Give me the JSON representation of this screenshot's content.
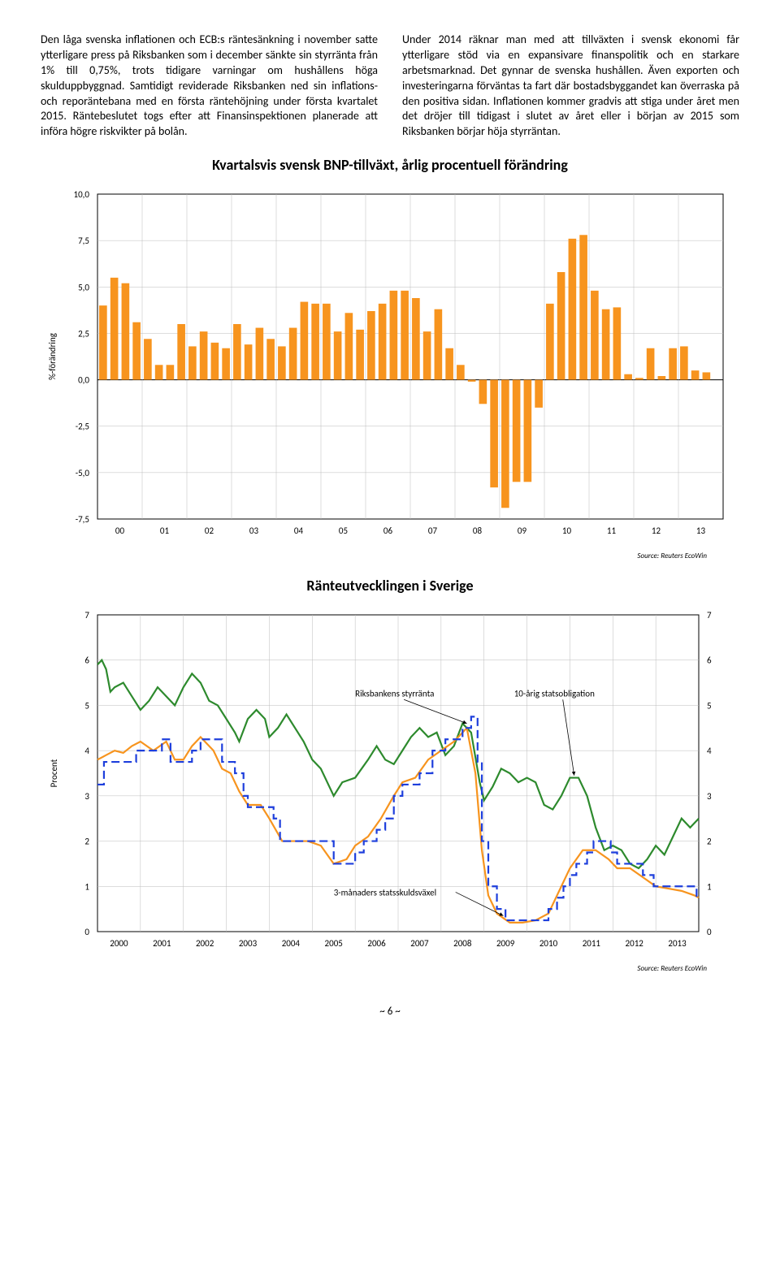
{
  "paragraphs": {
    "left": "Den låga svenska inflationen och ECB:s räntesänkning i november satte ytterligare press på Riksbanken som i december sänkte sin styrränta från 1% till 0,75%, trots tidigare varningar om hushållens höga skulduppbyggnad. Samtidigt reviderade Riksbanken ned sin inflations- och reporäntebana med en första räntehöjning under första kvartalet 2015. Räntebeslutet togs efter att Finansinspektionen planerade att införa högre riskvikter på bolån.",
    "right": "Under 2014 räknar man med att tillväxten i svensk ekonomi får ytterligare stöd via en expansivare finanspolitik och en starkare arbetsmarknad. Det gynnar de svenska hushållen. Även exporten och investeringarna förväntas ta fart där bostadsbyggandet kan överraska på den positiva sidan. Inflationen kommer gradvis att stiga under året men det dröjer till tidigast i slutet av året eller i början av 2015 som Riksbanken börjar höja styrräntan."
  },
  "bar_chart": {
    "title": "Kvartalsvis svensk BNP-tillväxt, årlig procentuell förändring",
    "y_label": "%-förändring",
    "y_min": -7.5,
    "y_max": 10.0,
    "y_step": 2.5,
    "x_labels": [
      "00",
      "01",
      "02",
      "03",
      "04",
      "05",
      "06",
      "07",
      "08",
      "09",
      "10",
      "11",
      "12",
      "13"
    ],
    "values": [
      4.0,
      5.5,
      5.2,
      3.1,
      2.2,
      0.8,
      0.8,
      3.0,
      1.8,
      2.6,
      2.0,
      1.7,
      3.0,
      1.9,
      2.8,
      2.2,
      1.8,
      2.8,
      4.2,
      4.1,
      4.1,
      2.6,
      3.6,
      2.7,
      3.7,
      4.1,
      4.8,
      4.8,
      4.4,
      2.6,
      3.8,
      1.7,
      0.8,
      -0.1,
      -1.3,
      -5.8,
      -6.9,
      -5.5,
      -5.5,
      -1.5,
      4.1,
      5.8,
      7.6,
      7.8,
      4.8,
      3.8,
      3.9,
      0.3,
      0.1,
      1.7,
      0.2,
      1.7,
      1.8,
      0.5,
      0.4,
      0.0
    ],
    "bar_color": "#f7941e",
    "background_color": "#ffffff"
  },
  "line_chart": {
    "title": "Ränteutvecklingen i Sverige",
    "y_label": "Procent",
    "y_min": 0,
    "y_max": 7,
    "y_step": 1,
    "x_min": 2000,
    "x_max": 2014,
    "x_labels": [
      "2000",
      "2001",
      "2002",
      "2003",
      "2004",
      "2005",
      "2006",
      "2007",
      "2008",
      "2009",
      "2010",
      "2011",
      "2012",
      "2013"
    ],
    "anno1": "Riksbankens styrränta",
    "anno2": "10-årig statsobligation",
    "anno3": "3-månaders statsskuldsväxel",
    "colors": {
      "green": "#2d8a2d",
      "blue": "#1e3fdc",
      "orange": "#f7941e"
    },
    "series_green": [
      [
        2000.0,
        5.9
      ],
      [
        2000.1,
        6.0
      ],
      [
        2000.2,
        5.8
      ],
      [
        2000.3,
        5.3
      ],
      [
        2000.4,
        5.4
      ],
      [
        2000.6,
        5.5
      ],
      [
        2000.8,
        5.2
      ],
      [
        2001.0,
        4.9
      ],
      [
        2001.2,
        5.1
      ],
      [
        2001.4,
        5.4
      ],
      [
        2001.6,
        5.2
      ],
      [
        2001.8,
        5.0
      ],
      [
        2002.0,
        5.4
      ],
      [
        2002.2,
        5.7
      ],
      [
        2002.4,
        5.5
      ],
      [
        2002.6,
        5.1
      ],
      [
        2002.8,
        5.0
      ],
      [
        2003.0,
        4.7
      ],
      [
        2003.2,
        4.4
      ],
      [
        2003.3,
        4.2
      ],
      [
        2003.5,
        4.7
      ],
      [
        2003.7,
        4.9
      ],
      [
        2003.9,
        4.7
      ],
      [
        2004.0,
        4.3
      ],
      [
        2004.2,
        4.5
      ],
      [
        2004.4,
        4.8
      ],
      [
        2004.6,
        4.5
      ],
      [
        2004.8,
        4.2
      ],
      [
        2005.0,
        3.8
      ],
      [
        2005.2,
        3.6
      ],
      [
        2005.4,
        3.2
      ],
      [
        2005.5,
        3.0
      ],
      [
        2005.7,
        3.3
      ],
      [
        2006.0,
        3.4
      ],
      [
        2006.3,
        3.8
      ],
      [
        2006.5,
        4.1
      ],
      [
        2006.7,
        3.8
      ],
      [
        2006.9,
        3.7
      ],
      [
        2007.1,
        4.0
      ],
      [
        2007.3,
        4.3
      ],
      [
        2007.5,
        4.5
      ],
      [
        2007.7,
        4.3
      ],
      [
        2007.9,
        4.4
      ],
      [
        2008.1,
        3.9
      ],
      [
        2008.3,
        4.1
      ],
      [
        2008.5,
        4.6
      ],
      [
        2008.7,
        4.4
      ],
      [
        2008.9,
        3.3
      ],
      [
        2009.0,
        2.9
      ],
      [
        2009.2,
        3.2
      ],
      [
        2009.4,
        3.6
      ],
      [
        2009.6,
        3.5
      ],
      [
        2009.8,
        3.3
      ],
      [
        2010.0,
        3.4
      ],
      [
        2010.2,
        3.3
      ],
      [
        2010.4,
        2.8
      ],
      [
        2010.6,
        2.7
      ],
      [
        2010.8,
        3.0
      ],
      [
        2011.0,
        3.4
      ],
      [
        2011.2,
        3.4
      ],
      [
        2011.4,
        3.0
      ],
      [
        2011.6,
        2.3
      ],
      [
        2011.8,
        1.8
      ],
      [
        2012.0,
        1.9
      ],
      [
        2012.2,
        1.8
      ],
      [
        2012.4,
        1.5
      ],
      [
        2012.6,
        1.4
      ],
      [
        2012.8,
        1.6
      ],
      [
        2013.0,
        1.9
      ],
      [
        2013.2,
        1.7
      ],
      [
        2013.4,
        2.1
      ],
      [
        2013.6,
        2.5
      ],
      [
        2013.8,
        2.3
      ],
      [
        2014.0,
        2.5
      ]
    ],
    "series_blue": [
      [
        2000.0,
        3.25
      ],
      [
        2000.15,
        3.75
      ],
      [
        2000.9,
        4.0
      ],
      [
        2001.5,
        4.25
      ],
      [
        2001.7,
        3.75
      ],
      [
        2002.2,
        4.0
      ],
      [
        2002.4,
        4.25
      ],
      [
        2002.9,
        3.75
      ],
      [
        2003.2,
        3.5
      ],
      [
        2003.4,
        3.0
      ],
      [
        2003.5,
        2.75
      ],
      [
        2004.1,
        2.5
      ],
      [
        2004.25,
        2.0
      ],
      [
        2005.5,
        1.5
      ],
      [
        2006.0,
        1.75
      ],
      [
        2006.2,
        2.0
      ],
      [
        2006.5,
        2.25
      ],
      [
        2006.7,
        2.5
      ],
      [
        2006.9,
        3.0
      ],
      [
        2007.1,
        3.25
      ],
      [
        2007.5,
        3.5
      ],
      [
        2007.8,
        4.0
      ],
      [
        2008.1,
        4.25
      ],
      [
        2008.5,
        4.5
      ],
      [
        2008.7,
        4.75
      ],
      [
        2008.85,
        3.75
      ],
      [
        2008.95,
        2.0
      ],
      [
        2009.1,
        1.0
      ],
      [
        2009.3,
        0.5
      ],
      [
        2009.5,
        0.25
      ],
      [
        2010.5,
        0.5
      ],
      [
        2010.7,
        0.75
      ],
      [
        2010.85,
        1.0
      ],
      [
        2011.0,
        1.25
      ],
      [
        2011.15,
        1.5
      ],
      [
        2011.4,
        1.75
      ],
      [
        2011.55,
        2.0
      ],
      [
        2011.95,
        1.75
      ],
      [
        2012.1,
        1.5
      ],
      [
        2012.7,
        1.25
      ],
      [
        2012.95,
        1.0
      ],
      [
        2013.95,
        0.75
      ],
      [
        2014.0,
        0.75
      ]
    ],
    "series_orange": [
      [
        2000.0,
        3.8
      ],
      [
        2000.2,
        3.9
      ],
      [
        2000.4,
        4.0
      ],
      [
        2000.6,
        3.95
      ],
      [
        2000.8,
        4.1
      ],
      [
        2001.0,
        4.2
      ],
      [
        2001.3,
        4.0
      ],
      [
        2001.6,
        4.2
      ],
      [
        2001.8,
        3.8
      ],
      [
        2002.0,
        3.8
      ],
      [
        2002.2,
        4.1
      ],
      [
        2002.4,
        4.3
      ],
      [
        2002.7,
        4.0
      ],
      [
        2002.9,
        3.6
      ],
      [
        2003.1,
        3.5
      ],
      [
        2003.3,
        3.1
      ],
      [
        2003.5,
        2.8
      ],
      [
        2003.8,
        2.8
      ],
      [
        2004.0,
        2.5
      ],
      [
        2004.3,
        2.0
      ],
      [
        2004.6,
        2.0
      ],
      [
        2004.9,
        2.0
      ],
      [
        2005.2,
        1.9
      ],
      [
        2005.5,
        1.5
      ],
      [
        2005.8,
        1.6
      ],
      [
        2006.0,
        1.9
      ],
      [
        2006.3,
        2.1
      ],
      [
        2006.6,
        2.5
      ],
      [
        2006.9,
        3.0
      ],
      [
        2007.1,
        3.3
      ],
      [
        2007.4,
        3.4
      ],
      [
        2007.7,
        3.8
      ],
      [
        2008.0,
        4.0
      ],
      [
        2008.3,
        4.2
      ],
      [
        2008.6,
        4.5
      ],
      [
        2008.8,
        3.5
      ],
      [
        2008.95,
        1.8
      ],
      [
        2009.1,
        0.8
      ],
      [
        2009.3,
        0.4
      ],
      [
        2009.6,
        0.2
      ],
      [
        2009.9,
        0.2
      ],
      [
        2010.2,
        0.25
      ],
      [
        2010.5,
        0.4
      ],
      [
        2010.8,
        1.0
      ],
      [
        2011.0,
        1.4
      ],
      [
        2011.3,
        1.8
      ],
      [
        2011.6,
        1.8
      ],
      [
        2011.9,
        1.6
      ],
      [
        2012.1,
        1.4
      ],
      [
        2012.4,
        1.4
      ],
      [
        2012.7,
        1.2
      ],
      [
        2013.0,
        1.0
      ],
      [
        2013.3,
        0.95
      ],
      [
        2013.6,
        0.9
      ],
      [
        2013.9,
        0.8
      ],
      [
        2014.0,
        0.75
      ]
    ]
  },
  "source_text": "Source: Reuters EcoWin",
  "page_number": "~ 6 ~"
}
